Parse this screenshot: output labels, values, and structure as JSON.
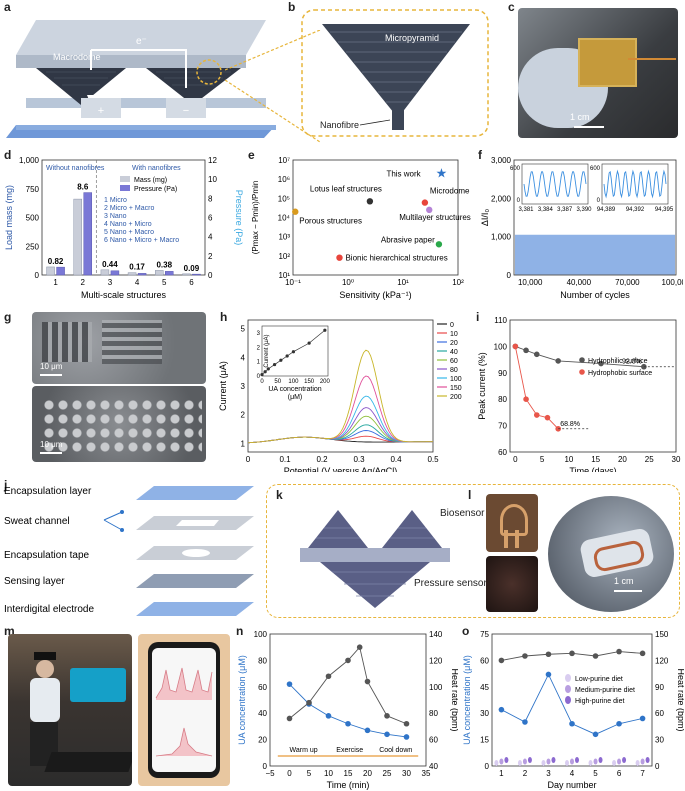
{
  "panels": {
    "a": {
      "label": "a",
      "macrodome": "Macrodome",
      "electron": "e⁻",
      "plus": "+",
      "minus": "−"
    },
    "b": {
      "label": "b",
      "micropyramid": "Micropyramid",
      "nanofibre": "Nanofibre"
    },
    "c": {
      "label": "c",
      "scale": "1 cm"
    },
    "d": {
      "label": "d",
      "without": "Without nanofibres",
      "with": "With nanofibres",
      "legend_mass": "Mass (mg)",
      "legend_pressure": "Pressure (Pa)",
      "structures": [
        "1 Micro",
        "2 Micro + Macro",
        "3 Nano",
        "4 Nano + Micro",
        "5 Nano + Macro",
        "6 Nano + Micro + Macro"
      ]
    },
    "e": {
      "label": "e",
      "annotations": [
        "This work",
        "Lotus leaf structures",
        "Microdome",
        "Porous structures",
        "Multilayer structures",
        "Abrasive paper",
        "Bionic hierarchical structures"
      ]
    },
    "f": {
      "label": "f"
    },
    "g": {
      "label": "g",
      "scale_top": "10 μm",
      "scale_bottom": "10 μm"
    },
    "h": {
      "label": "h",
      "inset_xlabel": "UA concentration",
      "inset_xunit": "(μM)",
      "inset_ylabel": "Current (μA)"
    },
    "i": {
      "label": "i"
    },
    "j": {
      "label": "j",
      "layers": [
        "Encapsulation layer",
        "Sweat channel",
        "Encapsulation tape",
        "Sensing layer",
        "Interdigital electrode"
      ]
    },
    "k": {
      "label": "k"
    },
    "l": {
      "label": "l",
      "biosensor": "Biosensor",
      "pressure_sensor": "Pressure sensor",
      "scale": "1 cm"
    },
    "m": {
      "label": "m"
    },
    "n": {
      "label": "n",
      "phases": [
        "Warm up",
        "Exercise",
        "Cool down"
      ]
    },
    "o": {
      "label": "o"
    }
  },
  "chart_data": [
    {
      "id": "d",
      "type": "bar",
      "categories": [
        "1",
        "2",
        "3",
        "4",
        "5",
        "6"
      ],
      "series": [
        {
          "name": "Mass (mg)",
          "values": [
            70,
            660,
            45,
            20,
            40,
            10
          ]
        },
        {
          "name": "Pressure (Pa)",
          "values": [
            0.82,
            8.6,
            0.44,
            0.17,
            0.38,
            0.09
          ]
        }
      ],
      "data_labels": [
        "0.82",
        "8.6",
        "0.44",
        "0.17",
        "0.38",
        "0.09"
      ],
      "xlabel": "Multi-scale structures",
      "ylabel": "Load mass (mg)",
      "y2label": "Pressure (Pa)",
      "ylim": [
        0,
        1000
      ],
      "y2lim": [
        0,
        12
      ],
      "yticks": [
        "0",
        "250",
        "500",
        "750",
        "1,000"
      ],
      "y2ticks": [
        "0",
        "2",
        "4",
        "6",
        "8",
        "10",
        "12"
      ]
    },
    {
      "id": "e",
      "type": "scatter",
      "xlabel": "Sensitivity (kPa⁻¹)",
      "ylabel": "(Pmax − Pmin)/Pmin",
      "x_scale": "log",
      "y_scale": "log",
      "xticks": [
        "10⁻¹",
        "10⁰",
        "10¹",
        "10²"
      ],
      "yticks": [
        "10¹",
        "10²",
        "10³",
        "10⁴",
        "10⁵",
        "10⁶",
        "10⁷"
      ],
      "points": [
        {
          "name": "This work",
          "x": 50,
          "y": 2000000
        },
        {
          "name": "Lotus leaf structures",
          "x": 2.5,
          "y": 70000
        },
        {
          "name": "Microdome",
          "x": 25,
          "y": 60000
        },
        {
          "name": "Porous structures",
          "x": 0.11,
          "y": 20000
        },
        {
          "name": "Multilayer structures",
          "x": 30,
          "y": 25000
        },
        {
          "name": "Abrasive paper",
          "x": 45,
          "y": 400
        },
        {
          "name": "Bionic hierarchical structures",
          "x": 0.7,
          "y": 80
        }
      ]
    },
    {
      "id": "f",
      "type": "line",
      "xlabel": "Number of cycles",
      "ylabel": "ΔI/I₀",
      "xticks": [
        "10,000",
        "40,000",
        "70,000",
        "100,000"
      ],
      "yticks": [
        "0",
        "1,000",
        "2,000",
        "3,000"
      ],
      "ylim": [
        0,
        3000
      ],
      "band": [
        900,
        1050
      ],
      "insets": [
        {
          "xticks": [
            "3,381",
            "3,384",
            "3,387",
            "3,390"
          ],
          "yticks": [
            "0",
            "600"
          ]
        },
        {
          "xticks": [
            "94,389",
            "94,392",
            "94,395"
          ],
          "yticks": [
            "0",
            "600"
          ]
        }
      ]
    },
    {
      "id": "h",
      "type": "line",
      "xlabel": "Potential (V versus Ag/AgCl)",
      "ylabel": "Current (μA)",
      "xticks": [
        "0",
        "0.1",
        "0.2",
        "0.3",
        "0.4",
        "0.5"
      ],
      "yticks": [
        "1",
        "2",
        "3",
        "4",
        "5"
      ],
      "xlim": [
        0,
        0.5
      ],
      "ylim": [
        0.7,
        5.3
      ],
      "series": [
        {
          "name": "0",
          "peak": 1.1
        },
        {
          "name": "10",
          "peak": 1.3
        },
        {
          "name": "20",
          "peak": 1.5
        },
        {
          "name": "40",
          "peak": 1.7
        },
        {
          "name": "60",
          "peak": 2.0
        },
        {
          "name": "80",
          "peak": 2.3
        },
        {
          "name": "100",
          "peak": 2.7
        },
        {
          "name": "150",
          "peak": 3.4
        },
        {
          "name": "200",
          "peak": 4.3
        }
      ],
      "colors": [
        "#222222",
        "#e84a4a",
        "#3b6de0",
        "#27a8a0",
        "#8fbf3a",
        "#8a55c9",
        "#36b7e8",
        "#e0509a",
        "#c8b62a"
      ],
      "inset": {
        "x": [
          0,
          10,
          20,
          40,
          60,
          80,
          100,
          150,
          200
        ],
        "y": [
          0.1,
          0.3,
          0.5,
          0.8,
          1.1,
          1.4,
          1.7,
          2.3,
          3.2
        ],
        "xticks": [
          "0",
          "50",
          "100",
          "150",
          "200"
        ],
        "yticks": [
          "0",
          "1",
          "2",
          "3"
        ]
      }
    },
    {
      "id": "i",
      "type": "line",
      "xlabel": "Time (days)",
      "ylabel": "Peak current (%)",
      "xticks": [
        "0",
        "5",
        "10",
        "15",
        "20",
        "25",
        "30"
      ],
      "yticks": [
        "60",
        "70",
        "80",
        "90",
        "100",
        "110"
      ],
      "xlim": [
        -1,
        30
      ],
      "ylim": [
        60,
        110
      ],
      "series": [
        {
          "name": "Hydrophilic surface",
          "color": "#555555",
          "x": [
            0,
            2,
            4,
            8,
            16,
            24
          ],
          "y": [
            100,
            98.5,
            97,
            94.5,
            93.5,
            92.3
          ]
        },
        {
          "name": "Hydrophobic surface",
          "color": "#e8564a",
          "x": [
            0,
            2,
            4,
            6,
            8
          ],
          "y": [
            100,
            80,
            74,
            73,
            68.8
          ]
        }
      ],
      "data_labels": [
        "92.3%",
        "68.8%"
      ]
    },
    {
      "id": "n",
      "type": "line",
      "xlabel": "Time (min)",
      "ylabel": "UA concentration (μM)",
      "y2label": "Heat rate (bpm)",
      "xticks": [
        "−5",
        "0",
        "5",
        "10",
        "15",
        "20",
        "25",
        "30",
        "35"
      ],
      "yticks": [
        "0",
        "20",
        "40",
        "60",
        "80",
        "100"
      ],
      "y2ticks": [
        "40",
        "60",
        "80",
        "100",
        "120",
        "140"
      ],
      "xlim": [
        -5,
        35
      ],
      "ylim": [
        0,
        100
      ],
      "y2lim": [
        40,
        140
      ],
      "series": [
        {
          "name": "UA",
          "axis": "left",
          "color": "#2f74c8",
          "x": [
            0,
            5,
            10,
            15,
            20,
            25,
            30
          ],
          "y": [
            62,
            47,
            38,
            32,
            27,
            24,
            22
          ]
        },
        {
          "name": "Heart rate",
          "axis": "right",
          "color": "#555555",
          "x": [
            0,
            5,
            10,
            15,
            18,
            20,
            25,
            30
          ],
          "y": [
            76,
            88,
            108,
            120,
            130,
            104,
            78,
            72
          ]
        }
      ]
    },
    {
      "id": "o",
      "type": "line",
      "xlabel": "Day number",
      "ylabel": "UA concentration (μM)",
      "y2label": "Heat rate (bpm)",
      "xticks": [
        "1",
        "2",
        "3",
        "4",
        "5",
        "6",
        "7"
      ],
      "yticks": [
        "0",
        "15",
        "30",
        "45",
        "60",
        "75"
      ],
      "y2ticks": [
        "0",
        "30",
        "60",
        "90",
        "120",
        "150"
      ],
      "xlim": [
        0.6,
        7.4
      ],
      "ylim": [
        0,
        75
      ],
      "y2lim": [
        0,
        150
      ],
      "series": [
        {
          "name": "UA",
          "axis": "left",
          "color": "#2f74c8",
          "x": [
            1,
            2,
            3,
            4,
            5,
            6,
            7
          ],
          "y": [
            32,
            25,
            52,
            24,
            18,
            24,
            27
          ]
        },
        {
          "name": "Heart rate",
          "axis": "right",
          "color": "#555555",
          "x": [
            1,
            2,
            3,
            4,
            5,
            6,
            7
          ],
          "y": [
            120,
            125,
            127,
            128,
            125,
            130,
            128
          ]
        }
      ],
      "legend": [
        "Low-purine diet",
        "Medium-purine diet",
        "High-purine diet"
      ],
      "legend_colors": [
        "#d9cdf0",
        "#b89ee0",
        "#8c6ad0"
      ],
      "diet_bars": {
        "low": [
          2,
          2,
          2,
          2,
          2,
          2,
          2
        ],
        "medium": [
          3,
          3,
          3,
          3,
          3,
          3,
          3
        ],
        "high": [
          4,
          4,
          4,
          4,
          4,
          4,
          4
        ]
      }
    }
  ]
}
